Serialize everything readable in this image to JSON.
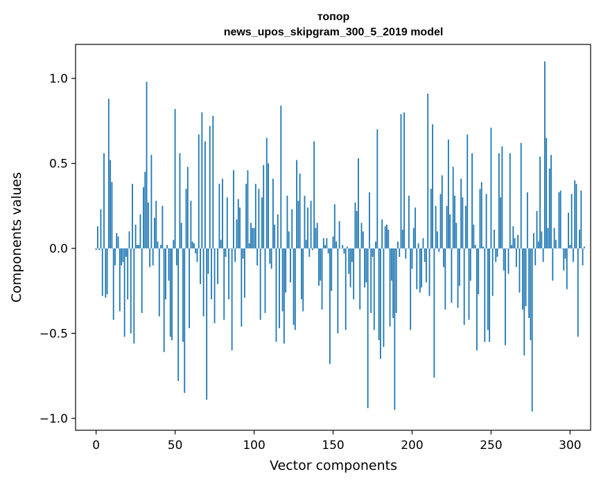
{
  "chart_data": {
    "type": "bar",
    "title": "топор",
    "subtitle": "news_upos_skipgram_300_5_2019 model",
    "xlabel": "Vector components",
    "ylabel": "Components values",
    "xlim": [
      -13,
      313
    ],
    "ylim": [
      -1.07,
      1.2
    ],
    "xticks": [
      0,
      50,
      100,
      150,
      200,
      250,
      300
    ],
    "xtick_labels": [
      "0",
      "50",
      "100",
      "150",
      "200",
      "250",
      "300"
    ],
    "yticks": [
      -1.0,
      -0.5,
      0.0,
      0.5,
      1.0
    ],
    "ytick_labels": [
      "−1.0",
      "−0.5",
      "0.0",
      "0.5",
      "1.0"
    ],
    "grid": false,
    "bar_color": "#1f77b4",
    "values": [
      -0.01,
      0.13,
      -0.01,
      0.23,
      -0.28,
      0.56,
      -0.29,
      -0.27,
      0.88,
      0.52,
      0.39,
      -0.42,
      -0.1,
      0.09,
      0.07,
      -0.37,
      -0.1,
      -0.08,
      -0.52,
      -0.05,
      -0.3,
      0.1,
      -0.5,
      0.38,
      -0.56,
      0.14,
      0.02,
      0.02,
      0.2,
      -0.38,
      0.36,
      0.45,
      0.98,
      0.27,
      -0.11,
      0.55,
      -0.1,
      0.18,
      0.28,
      0.04,
      -0.4,
      0.02,
      0.25,
      -0.61,
      -0.3,
      0.02,
      -0.19,
      -0.52,
      -0.54,
      0.05,
      0.82,
      -0.1,
      -0.78,
      0.56,
      0.15,
      -0.55,
      -0.85,
      0.35,
      0.48,
      -0.47,
      0.28,
      0.04,
      0.03,
      -0.03,
      -0.08,
      0.67,
      -0.21,
      0.8,
      -0.4,
      0.63,
      -0.89,
      -0.15,
      0.72,
      -0.3,
      0.78,
      -0.44,
      0.0,
      -0.21,
      0.38,
      0.05,
      0.41,
      -0.42,
      -0.05,
      0.3,
      -0.3,
      0.0,
      -0.6,
      0.46,
      -0.08,
      0.17,
      0.29,
      0.24,
      -0.46,
      -0.06,
      -0.29,
      0.38,
      0.46,
      0.03,
      0.15,
      0.12,
      0.12,
      0.38,
      -0.1,
      0.35,
      -0.42,
      0.3,
      0.49,
      -0.38,
      0.65,
      0.5,
      -0.09,
      -0.12,
      0.41,
      0.14,
      -0.55,
      0.2,
      -0.47,
      0.84,
      -0.37,
      -0.56,
      -0.26,
      0.31,
      0.1,
      -0.2,
      0.23,
      -0.45,
      -0.48,
      0.52,
      0.28,
      0.44,
      -0.3,
      -0.37,
      0.31,
      0.05,
      0.24,
      -0.05,
      0.28,
      -0.01,
      0.63,
      0.12,
      0.15,
      -0.22,
      -0.19,
      -0.36,
      0.06,
      0.02,
      0.06,
      -0.03,
      -0.68,
      -0.25,
      0.07,
      0.26,
      0.04,
      -0.5,
      0.16,
      0.0,
      0.02,
      -0.03,
      -0.48,
      0.01,
      -0.15,
      -0.23,
      -0.08,
      -0.3,
      0.27,
      0.22,
      0.53,
      -0.36,
      0.15,
      0.1,
      -0.23,
      -0.2,
      -0.94,
      0.33,
      -0.38,
      -0.05,
      -0.48,
      0.04,
      0.7,
      -0.54,
      -0.65,
      0.17,
      -0.58,
      0.13,
      0.14,
      0.11,
      -0.46,
      -0.19,
      -0.41,
      -0.95,
      -0.38,
      0.04,
      -0.05,
      0.79,
      0.11,
      0.8,
      -0.06,
      0.0,
      0.31,
      -0.48,
      -0.12,
      0.12,
      0.24,
      -0.24,
      0.03,
      -0.26,
      -0.23,
      0.06,
      -0.08,
      -0.2,
      0.91,
      -0.28,
      0.35,
      0.73,
      -0.76,
      0.25,
      0.1,
      -0.02,
      0.32,
      0.43,
      -0.11,
      -0.36,
      0.25,
      0.64,
      0.2,
      -0.32,
      0.48,
      0.31,
      0.15,
      -0.35,
      -0.22,
      0.41,
      0.3,
      -0.45,
      0.25,
      0.67,
      -0.42,
      -0.19,
      0.56,
      0.14,
      0.02,
      -0.6,
      -0.27,
      0.35,
      0.39,
      0.01,
      -0.55,
      0.32,
      -0.48,
      -0.55,
      0.71,
      -0.28,
      0.11,
      -0.08,
      -0.05,
      0.56,
      0.3,
      0.6,
      -0.13,
      -0.57,
      0.0,
      -0.15,
      0.56,
      0.02,
      0.13,
      0.06,
      -0.11,
      0.08,
      -0.26,
      0.62,
      -0.36,
      -0.63,
      -0.34,
      0.33,
      -0.41,
      -0.54,
      -0.96,
      0.09,
      -0.1,
      0.22,
      0.04,
      0.54,
      0.1,
      -0.08,
      1.1,
      0.65,
      0.12,
      0.47,
      0.55,
      -0.19,
      0.12,
      0.05,
      0.0,
      0.33,
      0.34,
      0.0,
      -0.13,
      -0.06,
      -0.24,
      0.21,
      0.02,
      0.32,
      -0.08,
      0.4,
      0.38,
      -0.52,
      0.11,
      0.34,
      -0.1,
      0.01
    ]
  }
}
